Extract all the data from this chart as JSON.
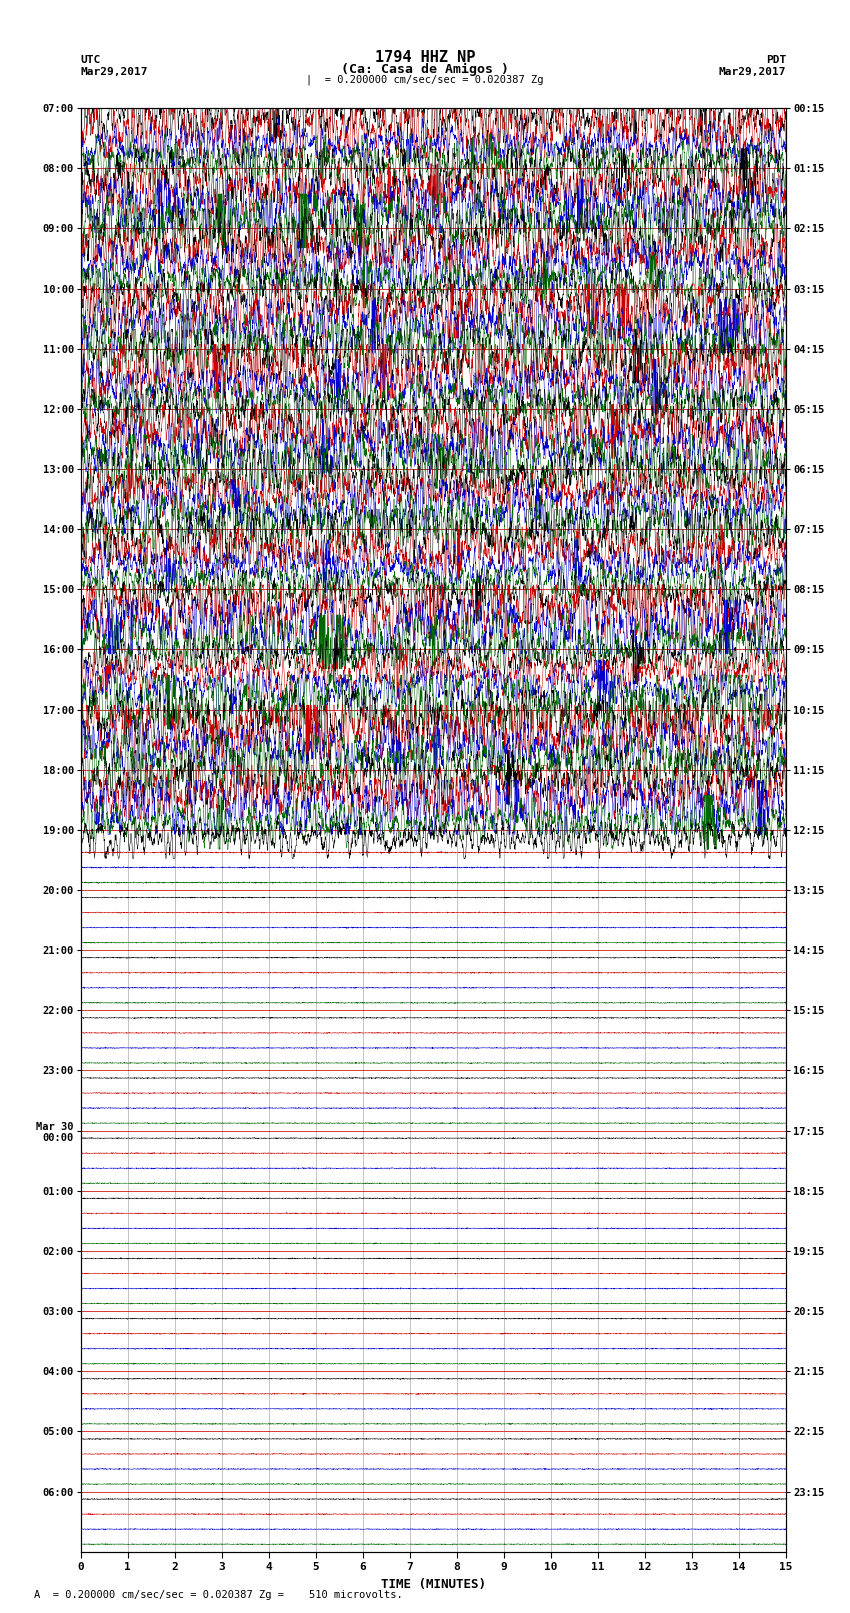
{
  "title_line1": "1794 HHZ NP",
  "title_line2": "(Ca: Casa de Amigos )",
  "scale_text": "= 0.200000 cm/sec/sec = 0.020387 Zg",
  "footer_text": "= 0.200000 cm/sec/sec = 0.020387 Zg =    510 microvolts.",
  "utc_label": "UTC",
  "utc_date": "Mar29,2017",
  "pdt_label": "PDT",
  "pdt_date": "Mar29,2017",
  "xlabel": "TIME (MINUTES)",
  "xmin": 0,
  "xmax": 15,
  "xticks": [
    0,
    1,
    2,
    3,
    4,
    5,
    6,
    7,
    8,
    9,
    10,
    11,
    12,
    13,
    14,
    15
  ],
  "background_color": "#ffffff",
  "vgrid_color": "#888888",
  "hgrid_color": "#cc0000",
  "trace_colors": [
    "#000000",
    "#cc0000",
    "#0000cc",
    "#006600"
  ],
  "left_ytick_labels": [
    "07:00",
    "08:00",
    "09:00",
    "10:00",
    "11:00",
    "12:00",
    "13:00",
    "14:00",
    "15:00",
    "16:00",
    "17:00",
    "18:00",
    "19:00",
    "20:00",
    "21:00",
    "22:00",
    "23:00",
    "Mar 30\n00:00",
    "01:00",
    "02:00",
    "03:00",
    "04:00",
    "05:00",
    "06:00"
  ],
  "right_ytick_labels": [
    "00:15",
    "01:15",
    "02:15",
    "03:15",
    "04:15",
    "05:15",
    "06:15",
    "07:15",
    "08:15",
    "09:15",
    "10:15",
    "11:15",
    "12:15",
    "13:15",
    "14:15",
    "15:15",
    "16:15",
    "17:15",
    "18:15",
    "19:15",
    "20:15",
    "21:15",
    "22:15",
    "23:15"
  ],
  "n_rows": 24,
  "traces_per_row": 4,
  "active_rows": 12,
  "semi_active_rows": 1,
  "seed": 42
}
